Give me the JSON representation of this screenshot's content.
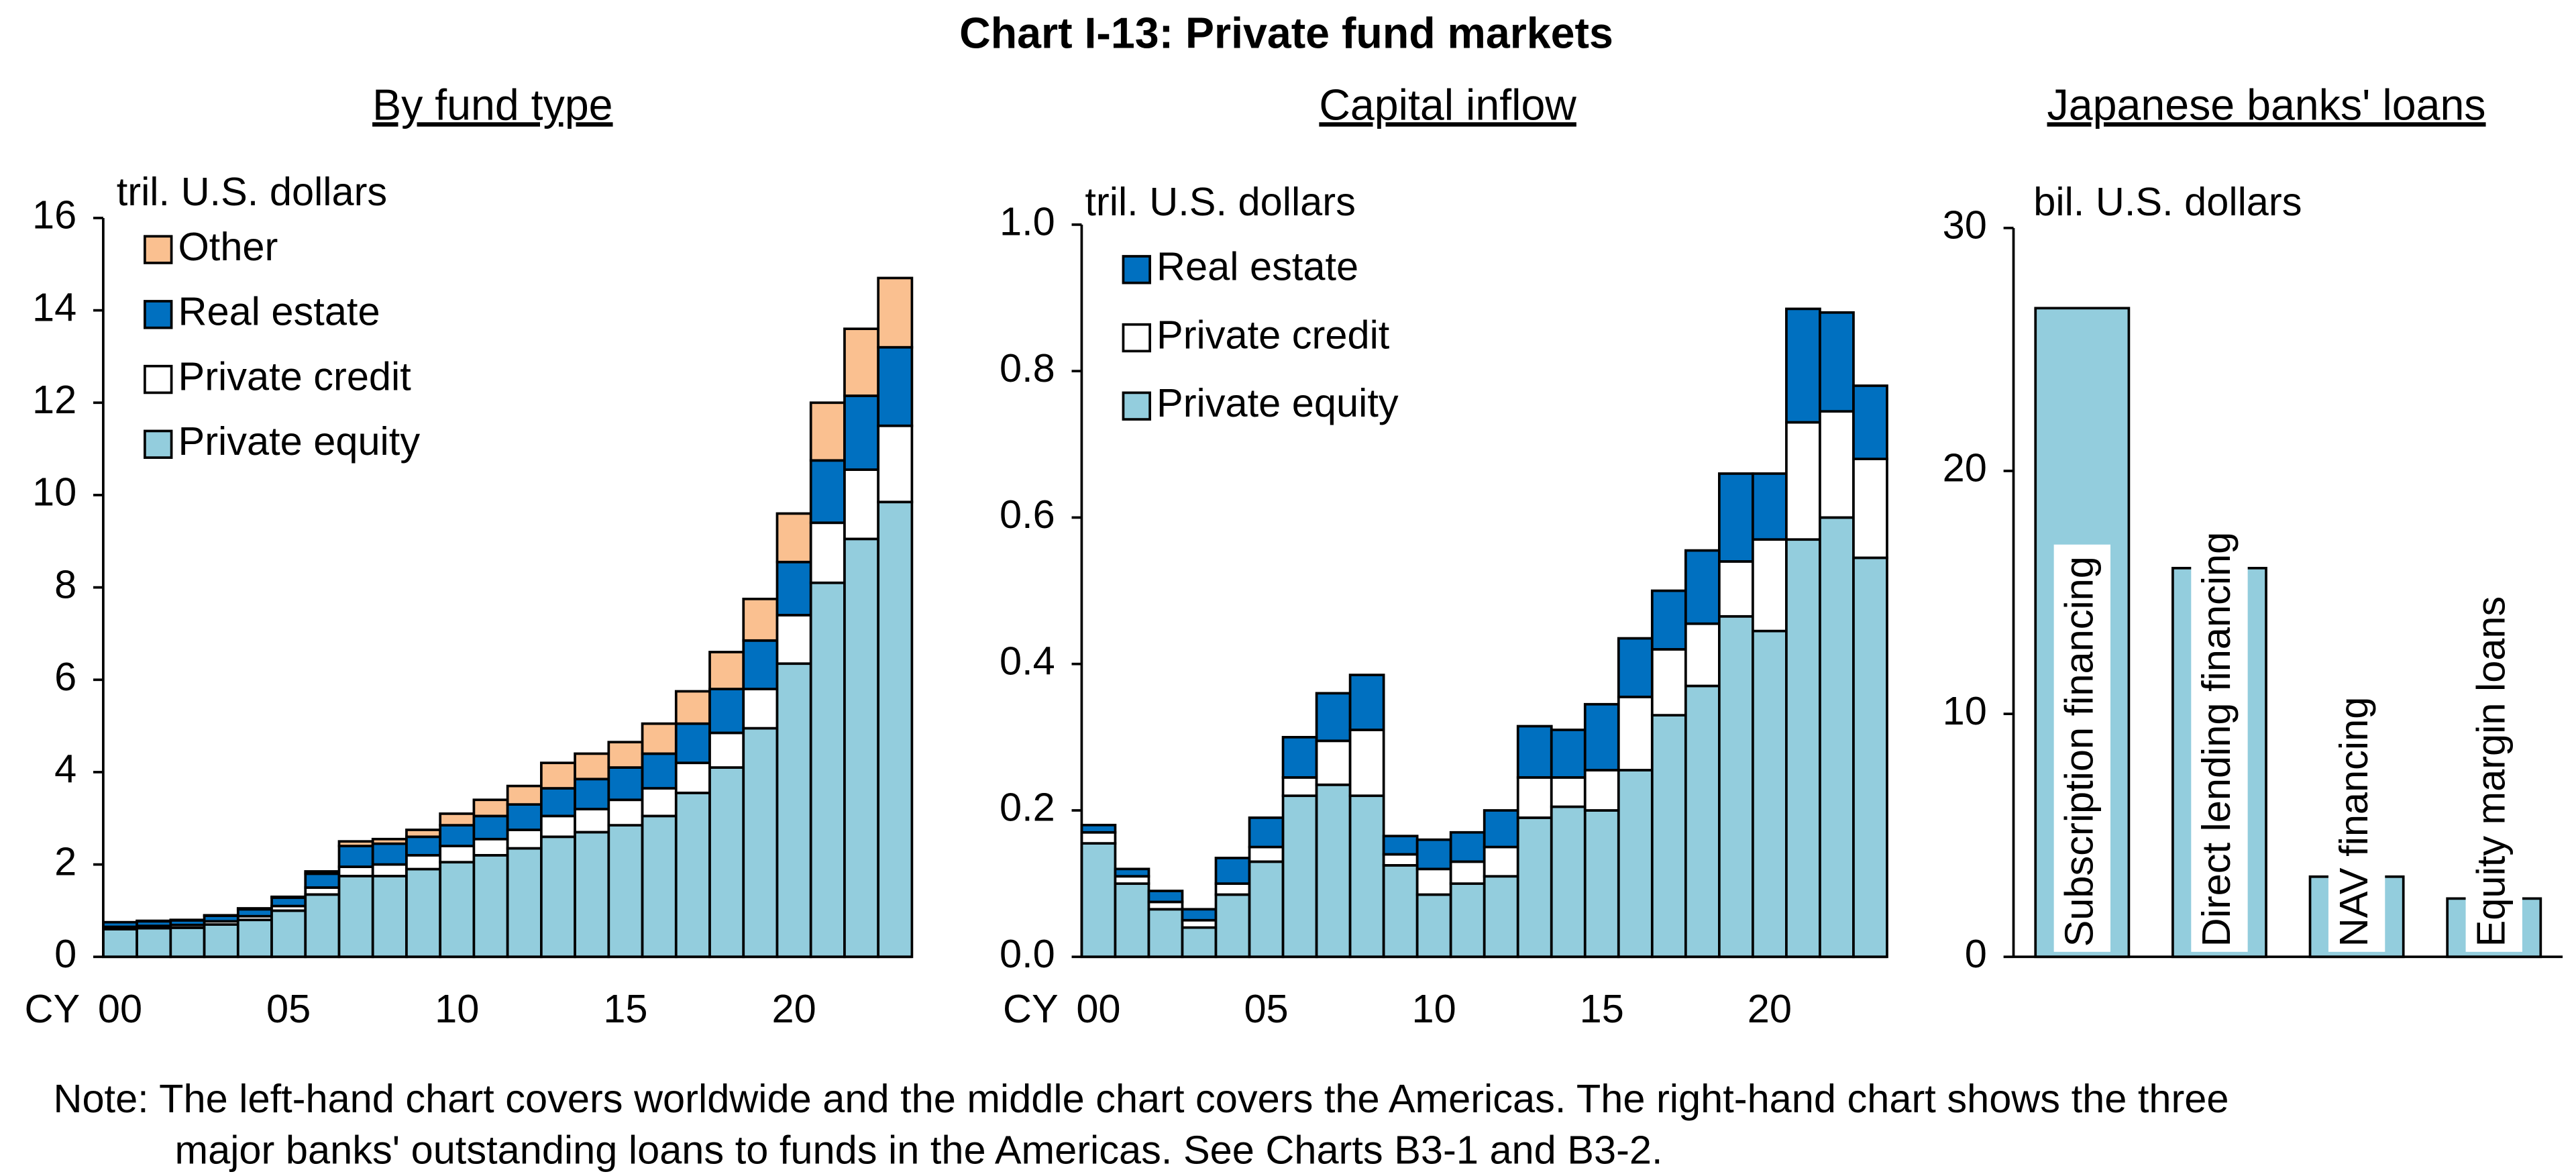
{
  "title": "Chart I-13: Private fund markets",
  "chart_data": [
    {
      "type": "stacked_bar",
      "subtitle": "By fund type",
      "y_label": "tril. U.S. dollars",
      "x_label": "CY",
      "categories": [
        "00",
        null,
        null,
        null,
        null,
        "05",
        null,
        null,
        null,
        null,
        "10",
        null,
        null,
        null,
        null,
        "15",
        null,
        null,
        null,
        null,
        "20",
        null,
        null,
        null
      ],
      "series": [
        {
          "name": "Private equity",
          "color": "#93cddd",
          "values": [
            0.6,
            0.62,
            0.63,
            0.7,
            0.8,
            1.0,
            1.35,
            1.75,
            1.75,
            1.9,
            2.05,
            2.2,
            2.35,
            2.6,
            2.7,
            2.85,
            3.05,
            3.55,
            4.1,
            4.95,
            6.35,
            8.1,
            9.05,
            9.85
          ]
        },
        {
          "name": "Private credit",
          "color": "#ffffff",
          "values": [
            0.05,
            0.05,
            0.06,
            0.07,
            0.08,
            0.1,
            0.15,
            0.2,
            0.25,
            0.3,
            0.35,
            0.35,
            0.4,
            0.45,
            0.5,
            0.55,
            0.6,
            0.65,
            0.75,
            0.85,
            1.05,
            1.3,
            1.5,
            1.65
          ]
        },
        {
          "name": "Real estate",
          "color": "#0070c0",
          "values": [
            0.1,
            0.1,
            0.1,
            0.12,
            0.15,
            0.18,
            0.3,
            0.45,
            0.45,
            0.4,
            0.45,
            0.5,
            0.55,
            0.6,
            0.65,
            0.7,
            0.75,
            0.85,
            0.95,
            1.05,
            1.15,
            1.35,
            1.6,
            1.7
          ]
        },
        {
          "name": "Other",
          "color": "#fac090",
          "values": [
            0,
            0.01,
            0.01,
            0.01,
            0.02,
            0.02,
            0.05,
            0.1,
            0.1,
            0.15,
            0.25,
            0.35,
            0.4,
            0.55,
            0.55,
            0.55,
            0.65,
            0.7,
            0.8,
            0.9,
            1.05,
            1.25,
            1.45,
            1.5
          ]
        }
      ],
      "ylim": [
        0,
        16
      ],
      "yticks": [
        0,
        2,
        4,
        6,
        8,
        10,
        12,
        14,
        16
      ],
      "legend": "top-left"
    },
    {
      "type": "stacked_bar",
      "subtitle": "Capital inflow",
      "y_label": "tril. U.S. dollars",
      "x_label": "CY",
      "categories": [
        "00",
        null,
        null,
        null,
        null,
        "05",
        null,
        null,
        null,
        null,
        "10",
        null,
        null,
        null,
        null,
        "15",
        null,
        null,
        null,
        null,
        "20",
        null,
        null,
        null
      ],
      "series": [
        {
          "name": "Private equity",
          "color": "#93cddd",
          "values": [
            0.155,
            0.1,
            0.065,
            0.04,
            0.085,
            0.13,
            0.22,
            0.235,
            0.22,
            0.125,
            0.085,
            0.1,
            0.11,
            0.19,
            0.205,
            0.2,
            0.255,
            0.33,
            0.37,
            0.465,
            0.445,
            0.57,
            0.6,
            0.545
          ]
        },
        {
          "name": "Private credit",
          "color": "#ffffff",
          "values": [
            0.015,
            0.01,
            0.01,
            0.01,
            0.015,
            0.02,
            0.025,
            0.06,
            0.09,
            0.015,
            0.035,
            0.03,
            0.04,
            0.055,
            0.04,
            0.055,
            0.1,
            0.09,
            0.085,
            0.075,
            0.125,
            0.16,
            0.145,
            0.135
          ]
        },
        {
          "name": "Real estate",
          "color": "#0070c0",
          "values": [
            0.01,
            0.01,
            0.015,
            0.015,
            0.035,
            0.04,
            0.055,
            0.065,
            0.075,
            0.025,
            0.04,
            0.04,
            0.05,
            0.07,
            0.065,
            0.09,
            0.08,
            0.08,
            0.1,
            0.12,
            0.09,
            0.155,
            0.135,
            0.1
          ]
        }
      ],
      "ylim": [
        0,
        1
      ],
      "yticks": [
        {
          "value": 0,
          "label": "0.0"
        },
        0.2,
        0.4,
        0.6,
        0.8,
        {
          "value": 1,
          "label": "1.0"
        }
      ],
      "legend": "top-left"
    },
    {
      "type": "bar",
      "subtitle": "Japanese banks' loans",
      "y_label": "bil. U.S. dollars",
      "categories": [
        "Subscription financing",
        "Direct lending financing",
        "NAV financing",
        "Equity margin loans"
      ],
      "values": [
        26.7,
        16,
        3.3,
        2.4
      ],
      "color": "#93cddd",
      "ylim": [
        0,
        30
      ],
      "yticks": [
        0,
        10,
        20,
        30
      ]
    }
  ],
  "note": [
    "Note: The left-hand chart covers worldwide and the middle chart covers the Americas. The right-hand chart shows the three",
    "major banks' outstanding loans to funds in the Americas. See Charts B3-1 and B3-2."
  ]
}
